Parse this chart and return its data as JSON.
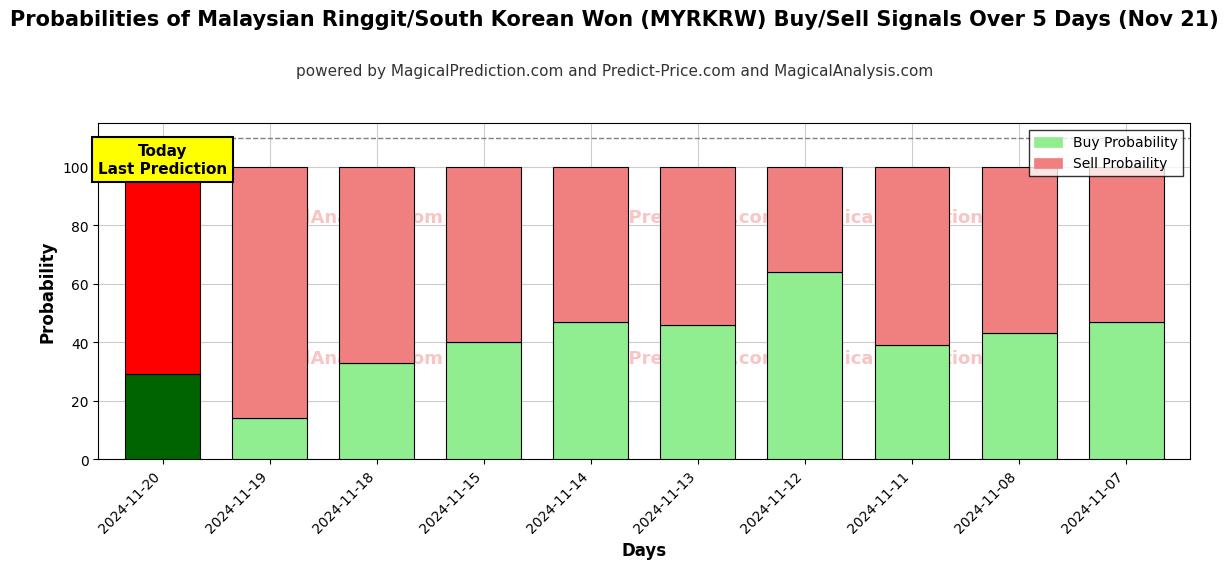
{
  "title": "Probabilities of Malaysian Ringgit/South Korean Won (MYRKRW) Buy/Sell Signals Over 5 Days (Nov 21)",
  "subtitle": "powered by MagicalPrediction.com and Predict-Price.com and MagicalAnalysis.com",
  "xlabel": "Days",
  "ylabel": "Probability",
  "dates": [
    "2024-11-20",
    "2024-11-19",
    "2024-11-18",
    "2024-11-15",
    "2024-11-14",
    "2024-11-13",
    "2024-11-12",
    "2024-11-11",
    "2024-11-08",
    "2024-11-07"
  ],
  "buy_values": [
    29,
    14,
    33,
    40,
    47,
    46,
    64,
    39,
    43,
    47
  ],
  "sell_values": [
    71,
    86,
    67,
    60,
    53,
    54,
    36,
    61,
    57,
    53
  ],
  "today_buy_color": "#006400",
  "today_sell_color": "#FF0000",
  "other_buy_color": "#90EE90",
  "other_sell_color": "#F08080",
  "today_label": "Today\nLast Prediction",
  "today_label_bg": "#FFFF00",
  "buy_legend_label": "Buy Probability",
  "sell_legend_label": "Sell Probaility",
  "ylim": [
    0,
    115
  ],
  "yticks": [
    0,
    20,
    40,
    60,
    80,
    100
  ],
  "dashed_line_y": 110,
  "background_color": "#ffffff",
  "grid_color": "#cccccc",
  "title_fontsize": 15,
  "subtitle_fontsize": 11
}
